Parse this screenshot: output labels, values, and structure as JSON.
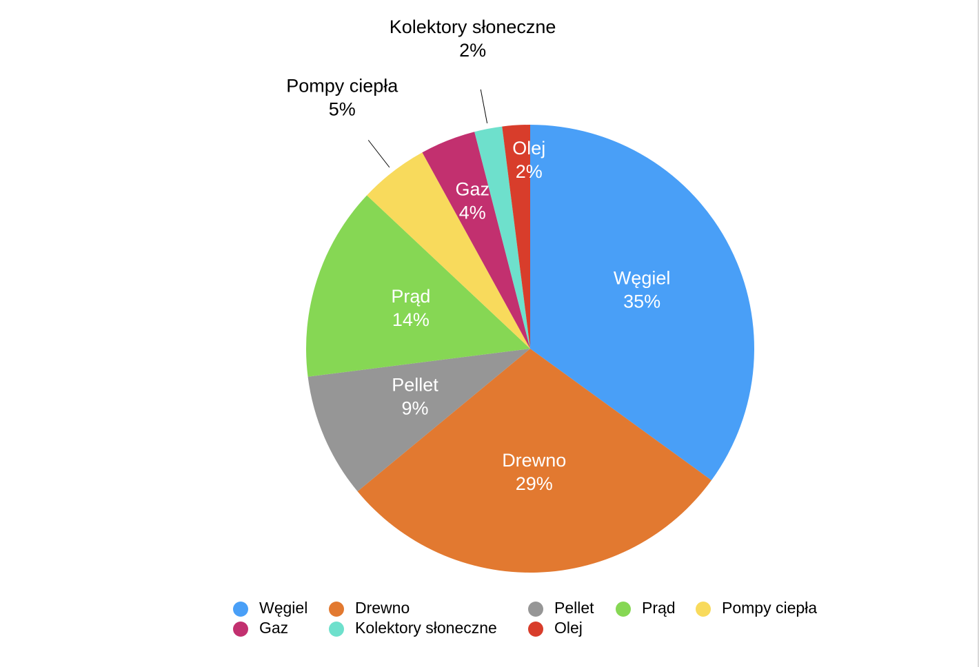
{
  "chart_data": {
    "type": "pie",
    "title": "",
    "slices": [
      {
        "name": "Węgiel",
        "value": 35,
        "label": "35%",
        "color": "#499FF7"
      },
      {
        "name": "Drewno",
        "value": 29,
        "label": "29%",
        "color": "#E27930"
      },
      {
        "name": "Pellet",
        "value": 9,
        "label": "9%",
        "color": "#969696"
      },
      {
        "name": "Prąd",
        "value": 14,
        "label": "14%",
        "color": "#86D754"
      },
      {
        "name": "Pompy ciepła",
        "value": 5,
        "label": "5%",
        "color": "#F8DA5C"
      },
      {
        "name": "Gaz",
        "value": 4,
        "label": "4%",
        "color": "#C2306F"
      },
      {
        "name": "Kolektory słoneczne",
        "value": 2,
        "label": "2%",
        "color": "#6EE0CC"
      },
      {
        "name": "Olej",
        "value": 2,
        "label": "2%",
        "color": "#D83D2B"
      }
    ],
    "legend": {
      "placement": "bottom",
      "order": [
        "Węgiel",
        "Drewno",
        "Pellet",
        "Prąd",
        "Pompy ciepła",
        "Gaz",
        "Kolektory słoneczne",
        "Olej"
      ]
    }
  }
}
